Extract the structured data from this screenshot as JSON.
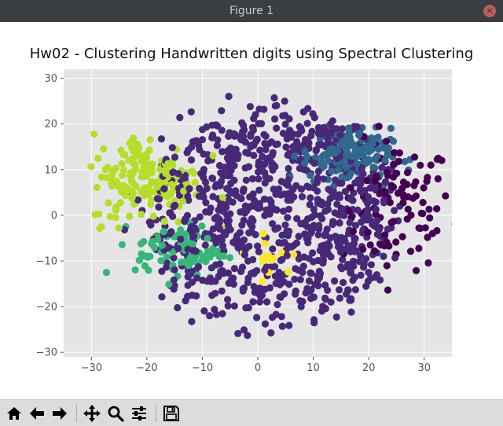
{
  "window": {
    "title": "Figure 1",
    "close_glyph": "×"
  },
  "toolbar": {
    "buttons": [
      {
        "name": "home-button",
        "icon": "home-icon"
      },
      {
        "name": "back-button",
        "icon": "arrow-left-icon"
      },
      {
        "name": "forward-button",
        "icon": "arrow-right-icon"
      },
      {
        "name": "pan-button",
        "icon": "move-icon"
      },
      {
        "name": "zoom-button",
        "icon": "magnifier-icon"
      },
      {
        "name": "configure-subplots-button",
        "icon": "sliders-icon"
      },
      {
        "name": "save-button",
        "icon": "floppy-disk-icon"
      }
    ]
  },
  "colors": {
    "plot_background": "#e5e5e5",
    "grid": "#ffffff",
    "tick_label": "#555555",
    "cluster_palette": [
      "#440154",
      "#482878",
      "#31688e",
      "#35b779",
      "#b5de2b",
      "#fde725"
    ]
  },
  "chart_data": {
    "type": "scatter",
    "title": "Hw02 - Clustering Handwritten digits using Spectral Clustering",
    "xlabel": "",
    "ylabel": "",
    "xlim": [
      -35,
      35
    ],
    "ylim": [
      -31,
      32
    ],
    "grid": true,
    "x_ticks": [
      -30,
      -20,
      -10,
      0,
      10,
      20,
      30
    ],
    "y_ticks": [
      -30,
      -20,
      -10,
      0,
      10,
      20,
      30
    ],
    "x_tick_labels": [
      "−30",
      "−20",
      "−10",
      "0",
      "10",
      "20",
      "30"
    ],
    "y_tick_labels": [
      "−30",
      "−20",
      "−10",
      "0",
      "10",
      "20",
      "30"
    ],
    "marker": "circle",
    "clusters": [
      {
        "cluster": 0,
        "color": "#440154",
        "center": [
          25,
          2
        ],
        "spread": [
          5,
          7
        ],
        "count": 110
      },
      {
        "cluster": 1,
        "color": "#482878",
        "center": [
          2,
          0
        ],
        "spread": [
          14,
          14
        ],
        "count": 900
      },
      {
        "cluster": 2,
        "color": "#31688e",
        "center": [
          16,
          13
        ],
        "spread": [
          4,
          3
        ],
        "count": 160
      },
      {
        "cluster": 3,
        "color": "#35b779",
        "center": [
          -14,
          -8
        ],
        "spread": [
          4,
          3
        ],
        "count": 80
      },
      {
        "cluster": 4,
        "color": "#b5de2b",
        "center": [
          -20,
          8
        ],
        "spread": [
          5,
          5
        ],
        "count": 170
      },
      {
        "cluster": 5,
        "color": "#fde725",
        "center": [
          2,
          -9
        ],
        "spread": [
          2,
          2
        ],
        "count": 18
      }
    ]
  }
}
